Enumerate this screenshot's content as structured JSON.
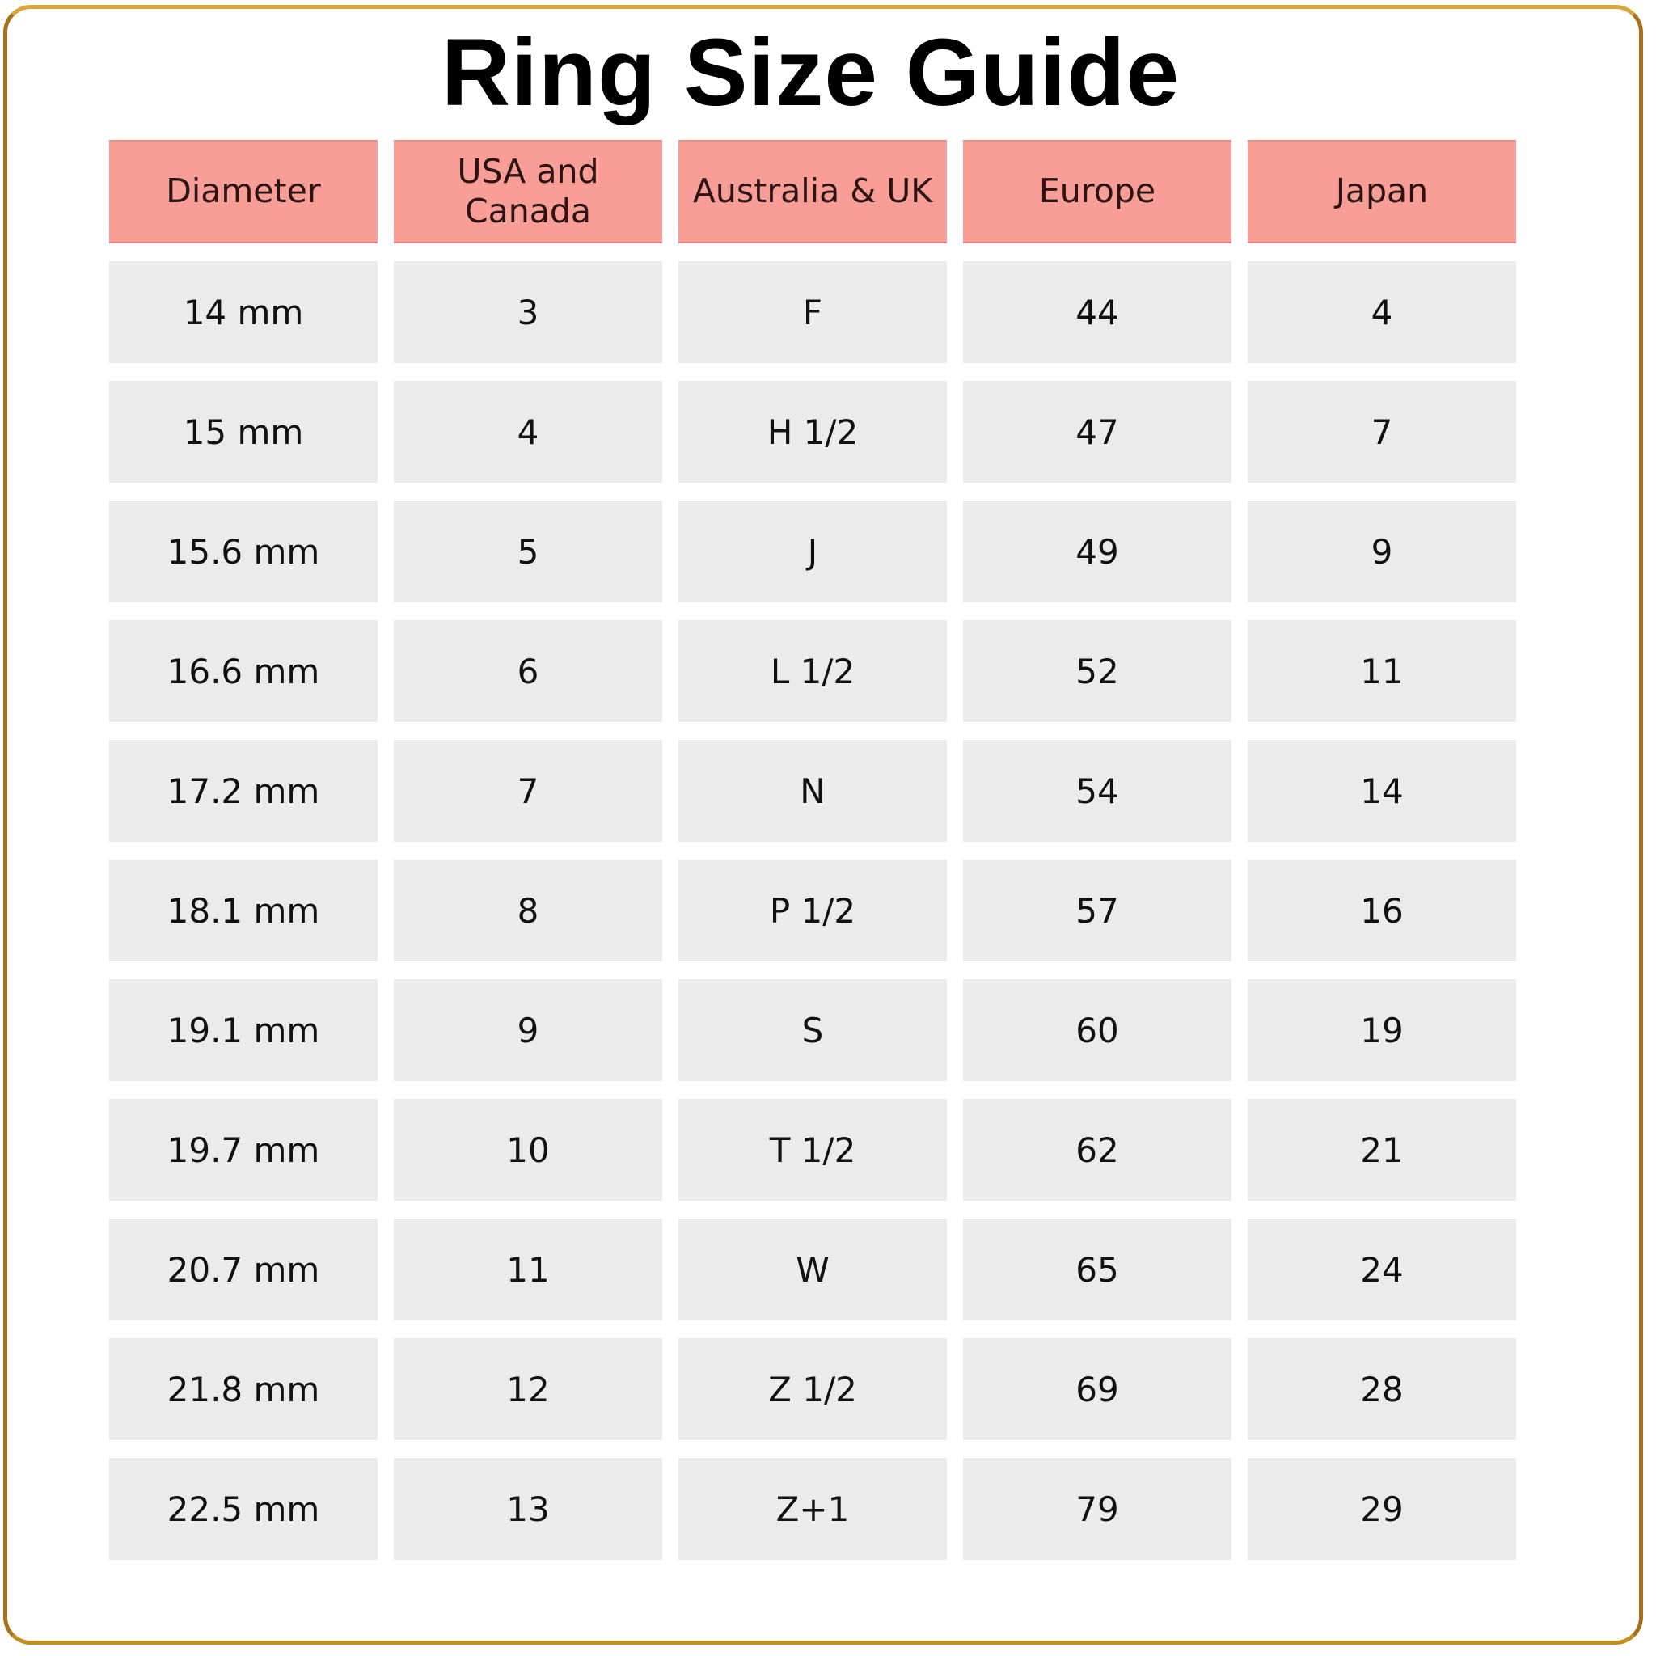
{
  "title": "Ring Size Guide",
  "colors": {
    "header_bg": "#f99d97",
    "cell_bg": "#ebebeb",
    "frame": "#c28a1c"
  },
  "table": {
    "headers": [
      "Diameter",
      "USA and Canada",
      "Australia & UK",
      "Europe",
      "Japan"
    ],
    "rows": [
      [
        "14 mm",
        "3",
        "F",
        "44",
        "4"
      ],
      [
        "15 mm",
        "4",
        "H 1/2",
        "47",
        "7"
      ],
      [
        "15.6 mm",
        "5",
        "J",
        "49",
        "9"
      ],
      [
        "16.6 mm",
        "6",
        "L 1/2",
        "52",
        "11"
      ],
      [
        "17.2 mm",
        "7",
        "N",
        "54",
        "14"
      ],
      [
        "18.1 mm",
        "8",
        "P 1/2",
        "57",
        "16"
      ],
      [
        "19.1 mm",
        "9",
        "S",
        "60",
        "19"
      ],
      [
        "19.7 mm",
        "10",
        "T 1/2",
        "62",
        "21"
      ],
      [
        "20.7 mm",
        "11",
        "W",
        "65",
        "24"
      ],
      [
        "21.8 mm",
        "12",
        "Z 1/2",
        "69",
        "28"
      ],
      [
        "22.5 mm",
        "13",
        "Z+1",
        "79",
        "29"
      ]
    ]
  }
}
